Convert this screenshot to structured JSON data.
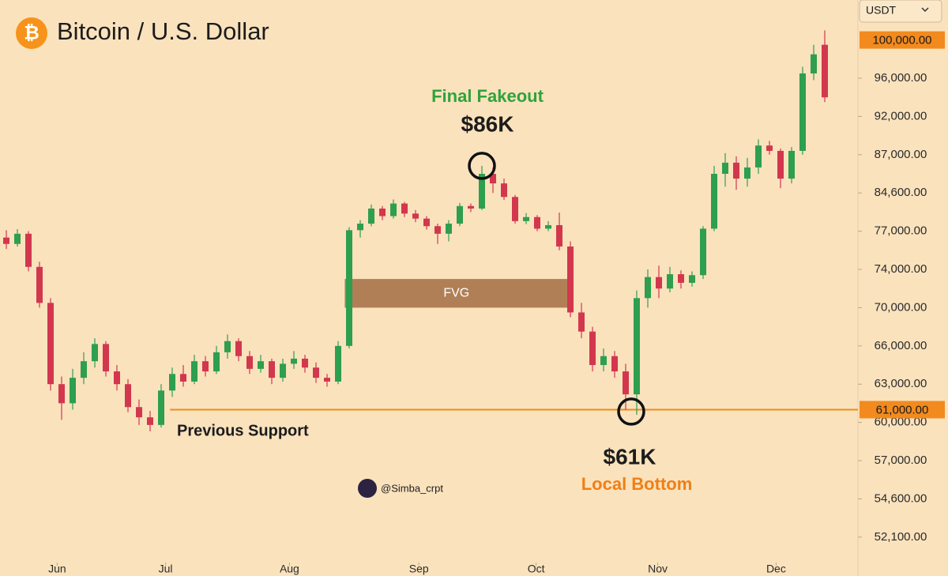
{
  "header": {
    "title": "Bitcoin / U.S. Dollar",
    "currency": "USDT"
  },
  "chart_data": {
    "type": "candlestick",
    "up_color": "#2e9e4f",
    "down_color": "#d2374e",
    "ohlc": [
      [
        76500,
        77200,
        75600,
        76000
      ],
      [
        76000,
        77400,
        75800,
        76800
      ],
      [
        76800,
        77000,
        73800,
        74200
      ],
      [
        74200,
        74600,
        70000,
        70500
      ],
      [
        70500,
        71000,
        62500,
        63000
      ],
      [
        63000,
        63600,
        60200,
        61500
      ],
      [
        61500,
        64200,
        61000,
        63500
      ],
      [
        63500,
        65500,
        63000,
        64800
      ],
      [
        64800,
        66800,
        64300,
        66200
      ],
      [
        66200,
        66500,
        63600,
        64000
      ],
      [
        64000,
        64500,
        62500,
        63000
      ],
      [
        63000,
        63400,
        60800,
        61200
      ],
      [
        61200,
        61800,
        59800,
        60400
      ],
      [
        60400,
        60900,
        59300,
        59800
      ],
      [
        59800,
        63000,
        59600,
        62500
      ],
      [
        62500,
        64300,
        62000,
        63800
      ],
      [
        63800,
        64500,
        62800,
        63200
      ],
      [
        63200,
        65300,
        63000,
        64800
      ],
      [
        64800,
        65200,
        63600,
        64000
      ],
      [
        64000,
        66000,
        63800,
        65500
      ],
      [
        65500,
        67200,
        65000,
        66500
      ],
      [
        66500,
        66800,
        64800,
        65200
      ],
      [
        65200,
        65600,
        63800,
        64200
      ],
      [
        64200,
        65300,
        63900,
        64800
      ],
      [
        64800,
        65000,
        63000,
        63500
      ],
      [
        63500,
        65000,
        63200,
        64600
      ],
      [
        64600,
        65600,
        64200,
        65000
      ],
      [
        65000,
        65300,
        63900,
        64300
      ],
      [
        64300,
        64700,
        63100,
        63500
      ],
      [
        63500,
        63800,
        62800,
        63200
      ],
      [
        63200,
        66500,
        63000,
        66000
      ],
      [
        66000,
        77800,
        65800,
        77200
      ],
      [
        77200,
        79200,
        76500,
        78500
      ],
      [
        78500,
        82300,
        78000,
        81500
      ],
      [
        81500,
        82000,
        79200,
        80000
      ],
      [
        80000,
        83300,
        79500,
        82500
      ],
      [
        82500,
        82800,
        79800,
        80500
      ],
      [
        80500,
        81200,
        78800,
        79500
      ],
      [
        79500,
        80000,
        77300,
        78000
      ],
      [
        78000,
        78500,
        76000,
        76800
      ],
      [
        76800,
        79200,
        76200,
        78500
      ],
      [
        78500,
        82600,
        78000,
        82000
      ],
      [
        82000,
        82500,
        80800,
        81500
      ],
      [
        81500,
        86300,
        81200,
        85800
      ],
      [
        85800,
        86200,
        84600,
        85200
      ],
      [
        85200,
        85500,
        83200,
        83800
      ],
      [
        83800,
        84200,
        78500,
        79000
      ],
      [
        79000,
        80600,
        78400,
        79800
      ],
      [
        79800,
        80200,
        77000,
        77500
      ],
      [
        77500,
        79000,
        77000,
        78200
      ],
      [
        78200,
        80700,
        75500,
        75800
      ],
      [
        75800,
        76200,
        69000,
        69500
      ],
      [
        69500,
        70500,
        66800,
        67500
      ],
      [
        67500,
        68000,
        64000,
        64500
      ],
      [
        64500,
        65800,
        64000,
        65200
      ],
      [
        65200,
        65600,
        63500,
        64000
      ],
      [
        64000,
        64600,
        61000,
        62200
      ],
      [
        62200,
        71800,
        60600,
        71000
      ],
      [
        71000,
        74000,
        70000,
        73200
      ],
      [
        73200,
        74300,
        71000,
        72000
      ],
      [
        72000,
        74200,
        71600,
        73500
      ],
      [
        73500,
        73900,
        72000,
        72600
      ],
      [
        72600,
        73800,
        72200,
        73400
      ],
      [
        73400,
        78000,
        73000,
        77500
      ],
      [
        77500,
        86300,
        77000,
        85800
      ],
      [
        85800,
        87200,
        85000,
        86500
      ],
      [
        86500,
        86900,
        84800,
        85500
      ],
      [
        85500,
        86800,
        85000,
        86200
      ],
      [
        86200,
        89000,
        85800,
        88200
      ],
      [
        88200,
        88800,
        87000,
        87500
      ],
      [
        87500,
        87800,
        84900,
        85500
      ],
      [
        85500,
        88000,
        85200,
        87500
      ],
      [
        87500,
        97200,
        87000,
        96500
      ],
      [
        96500,
        99500,
        95800,
        98500
      ],
      [
        99500,
        101000,
        93500,
        94000
      ]
    ],
    "yticks": [
      {
        "value": 96000,
        "label": "96,000.00"
      },
      {
        "value": 92000,
        "label": "92,000.00"
      },
      {
        "value": 87000,
        "label": "87,000.00"
      },
      {
        "value": 84600,
        "label": "84,600.00"
      },
      {
        "value": 77000,
        "label": "77,000.00"
      },
      {
        "value": 74000,
        "label": "74,000.00"
      },
      {
        "value": 70000,
        "label": "70,000.00"
      },
      {
        "value": 66000,
        "label": "66,000.00"
      },
      {
        "value": 63000,
        "label": "63,000.00"
      },
      {
        "value": 60000,
        "label": "60,000.00"
      },
      {
        "value": 57000,
        "label": "57,000.00"
      },
      {
        "value": 54600,
        "label": "54,600.00"
      },
      {
        "value": 52100,
        "label": "52,100.00"
      }
    ],
    "xticks": [
      {
        "value": 4.6,
        "label": "Jun"
      },
      {
        "value": 14.4,
        "label": "Jul"
      },
      {
        "value": 25.6,
        "label": "Aug"
      },
      {
        "value": 37.3,
        "label": "Sep"
      },
      {
        "value": 47.9,
        "label": "Oct"
      },
      {
        "value": 58.9,
        "label": "Nov"
      },
      {
        "value": 69.6,
        "label": "Dec"
      }
    ],
    "price_labels": [
      {
        "value": 100000,
        "label": "100,000.00"
      },
      {
        "value": 61000,
        "label": "61,000.00"
      }
    ],
    "fvg": {
      "label": "FVG",
      "range": [
        70000,
        73000
      ]
    },
    "annotations": {
      "fakeout": "Final Fakeout",
      "top": "$86K",
      "bottom": "$61K",
      "bottom_note": "Local Bottom",
      "support": "Previous Support"
    },
    "watermark": "@Simba_crpt"
  }
}
